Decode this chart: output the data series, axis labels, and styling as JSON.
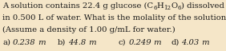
{
  "background_color": "#f5e6c8",
  "text_color": "#1a1a1a",
  "line1_pre": "A solution contains 22.4 g glucose (C",
  "line1_sub1": "6",
  "line1_h": "H",
  "line1_sub2": "12",
  "line1_o": "O",
  "line1_sub3": "6",
  "line1_post": ") dissolved",
  "line2": "in 0.500 L of water. What is the molality of the solution?",
  "line3": "(Assume a density of 1.00 g/mL for water.)",
  "ans_prefixes": [
    "a)",
    "b)",
    "c)",
    "d)"
  ],
  "ans_values": [
    "0.238",
    "44.8",
    "0.249",
    "4.03"
  ],
  "fontsize": 7.2,
  "figsize": [
    2.82,
    0.64
  ],
  "dpi": 100
}
